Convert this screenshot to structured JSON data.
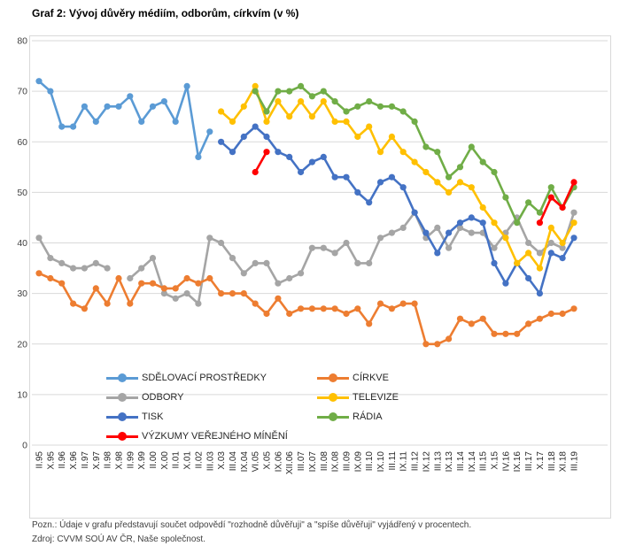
{
  "page": {
    "title": "Graf 2: Vývoj důvěry médiím, odborům, církvím (v %)"
  },
  "notes": {
    "pozn": "Pozn.: Údaje v grafu představují součet odpovědí \"rozhodně důvěřuji\" a \"spíše důvěřuji\" vyjádřený v procentech.",
    "zdroj": "Zdroj: CVVM SOÚ AV ČR, Naše společnost."
  },
  "chart_data": {
    "type": "line",
    "title": "Graf 2: Vývoj důvěry médiím, odborům, církvím (v %)",
    "ylim": [
      0,
      80
    ],
    "ystep": 10,
    "grid": true,
    "legend_position": "inside-bottom, two columns",
    "axis_color": "#D9D9D9",
    "tick_color": "#404040",
    "categories": [
      "II.95",
      "X.95",
      "II.96",
      "X.96",
      "II.97",
      "X.97",
      "II.98",
      "X.98",
      "II.99",
      "X.99",
      "II.00",
      "X.00",
      "II.01",
      "X.01",
      "II.02",
      "III.03",
      "X.03",
      "III.04",
      "IX.04",
      "VI.05",
      "X.05",
      "IX.06",
      "XII.06",
      "III.07",
      "IX.07",
      "III.08",
      "IX.08",
      "III.09",
      "IX.09",
      "III.10",
      "IX.10",
      "III.11",
      "IX.11",
      "III.12",
      "IX.12",
      "III.13",
      "IX.13",
      "III.14",
      "IX.14",
      "III.15",
      "X.15",
      "IV.16",
      "IX.16",
      "III.17",
      "X.17",
      "III.18",
      "XI.18",
      "III.19"
    ],
    "series": [
      {
        "name": "SDĚLOVACÍ PROSTŘEDKY",
        "color": "#5B9BD5",
        "values": [
          72,
          70,
          63,
          63,
          67,
          64,
          67,
          67,
          69,
          64,
          67,
          68,
          64,
          71,
          57,
          62,
          null,
          null,
          null,
          null,
          null,
          null,
          null,
          null,
          null,
          null,
          null,
          null,
          null,
          null,
          null,
          null,
          null,
          null,
          null,
          null,
          null,
          null,
          null,
          null,
          null,
          null,
          null,
          null,
          null,
          null,
          null,
          null
        ]
      },
      {
        "name": "ODBORY",
        "color": "#A5A5A5",
        "values": [
          41,
          37,
          36,
          35,
          35,
          36,
          35,
          null,
          33,
          35,
          37,
          30,
          29,
          30,
          28,
          41,
          40,
          37,
          34,
          36,
          36,
          32,
          33,
          34,
          39,
          39,
          38,
          40,
          36,
          36,
          41,
          42,
          43,
          46,
          41,
          43,
          39,
          43,
          42,
          42,
          39,
          42,
          45,
          40,
          38,
          40,
          39,
          46
        ]
      },
      {
        "name": "CÍRKVE",
        "color": "#ED7D31",
        "values": [
          34,
          33,
          32,
          28,
          27,
          31,
          28,
          33,
          28,
          32,
          32,
          31,
          31,
          33,
          32,
          33,
          30,
          30,
          30,
          28,
          26,
          29,
          26,
          27,
          27,
          27,
          27,
          26,
          27,
          24,
          28,
          27,
          28,
          28,
          20,
          20,
          21,
          25,
          24,
          25,
          22,
          22,
          22,
          24,
          25,
          26,
          26,
          27
        ]
      },
      {
        "name": "TISK",
        "color": "#4472C4",
        "values": [
          null,
          null,
          null,
          null,
          null,
          null,
          null,
          null,
          null,
          null,
          null,
          null,
          null,
          null,
          null,
          null,
          60,
          58,
          61,
          63,
          61,
          58,
          57,
          54,
          56,
          57,
          53,
          53,
          50,
          48,
          52,
          53,
          51,
          46,
          42,
          38,
          42,
          44,
          45,
          44,
          36,
          32,
          36,
          33,
          30,
          38,
          37,
          41
        ]
      },
      {
        "name": "TELEVIZE",
        "color": "#FFC000",
        "values": [
          null,
          null,
          null,
          null,
          null,
          null,
          null,
          null,
          null,
          null,
          null,
          null,
          null,
          null,
          null,
          null,
          66,
          64,
          67,
          71,
          64,
          68,
          65,
          68,
          65,
          68,
          64,
          64,
          61,
          63,
          58,
          61,
          58,
          56,
          54,
          52,
          50,
          52,
          51,
          47,
          44,
          41,
          36,
          38,
          35,
          43,
          40,
          44
        ]
      },
      {
        "name": "RÁDIA",
        "color": "#70AD47",
        "values": [
          null,
          null,
          null,
          null,
          null,
          null,
          null,
          null,
          null,
          null,
          null,
          null,
          null,
          null,
          null,
          null,
          null,
          null,
          null,
          70,
          66,
          70,
          70,
          71,
          69,
          70,
          68,
          66,
          67,
          68,
          67,
          67,
          66,
          64,
          59,
          58,
          53,
          55,
          59,
          56,
          54,
          49,
          44,
          48,
          46,
          51,
          47,
          51
        ]
      },
      {
        "name": "VÝZKUMY VEŘEJNÉHO MÍNĚNÍ",
        "color": "#FF0000",
        "values": [
          null,
          null,
          null,
          null,
          null,
          null,
          null,
          null,
          null,
          null,
          null,
          null,
          null,
          null,
          null,
          null,
          null,
          null,
          null,
          54,
          58,
          null,
          null,
          null,
          null,
          null,
          null,
          null,
          null,
          null,
          null,
          null,
          null,
          null,
          null,
          null,
          null,
          null,
          null,
          null,
          null,
          null,
          null,
          null,
          44,
          49,
          47,
          52
        ]
      }
    ],
    "legend_columns": [
      [
        "SDĚLOVACÍ PROSTŘEDKY",
        "ODBORY",
        "TISK",
        "VÝZKUMY VEŘEJNÉHO MÍNĚNÍ"
      ],
      [
        "CÍRKVE",
        "TELEVIZE",
        "RÁDIA"
      ]
    ]
  }
}
